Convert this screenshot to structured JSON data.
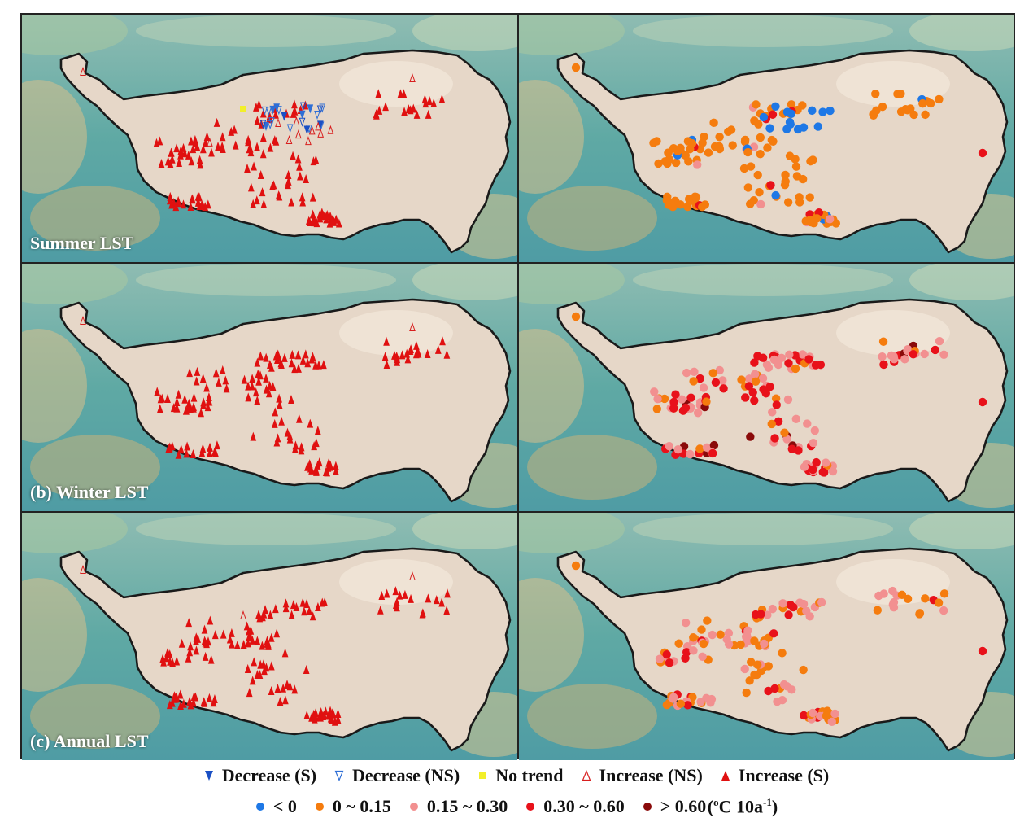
{
  "panels": [
    {
      "id": "a",
      "label": "Summer LST"
    },
    {
      "id": "b",
      "label": "(b) Winter LST"
    },
    {
      "id": "c",
      "label": "(c) Annual LST"
    }
  ],
  "legend_trend": [
    {
      "key": "dec_s",
      "label": "Decrease (S)",
      "color": "#1a4fc4",
      "icon": "filled-down-triangle"
    },
    {
      "key": "dec_ns",
      "label": "Decrease (NS)",
      "color": "#2f6fd6",
      "icon": "hollow-down-triangle"
    },
    {
      "key": "none",
      "label": "No trend",
      "color": "#f2ef2a",
      "icon": "yellow-square"
    },
    {
      "key": "inc_ns",
      "label": "Increase (NS)",
      "color": "#d81e1e",
      "icon": "hollow-up-triangle"
    },
    {
      "key": "inc_s",
      "label": "Increase (S)",
      "color": "#e01010",
      "icon": "filled-up-triangle"
    }
  ],
  "legend_rate": [
    {
      "key": "neg",
      "label": "< 0",
      "color": "#1e78e6"
    },
    {
      "key": "low",
      "label": "0 ~ 0.15",
      "color": "#f57c0e"
    },
    {
      "key": "mid",
      "label": "0.15 ~ 0.30",
      "color": "#f29090"
    },
    {
      "key": "high",
      "label": "0.30 ~ 0.60",
      "color": "#e8111a"
    },
    {
      "key": "vhigh",
      "label": "> 0.60",
      "color": "#8a0a0a"
    }
  ],
  "unit": {
    "text": "(oC 10a-1)",
    "deg": "o",
    "main": "C 10a",
    "sup": "-1"
  },
  "colors": {
    "land": "#e6d7c8",
    "highland": "#f0e4d6",
    "ocean_shade": "#5fa9a4",
    "border": "#1a1a1a"
  }
}
